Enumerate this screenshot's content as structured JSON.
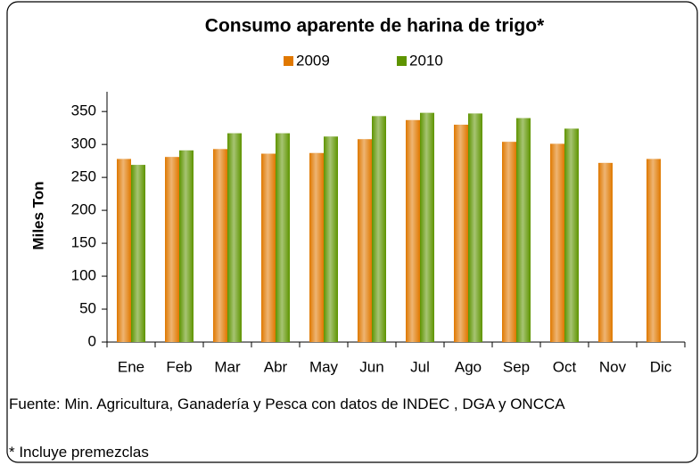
{
  "chart_data": {
    "type": "bar",
    "title": "Consumo aparente de harina de trigo*",
    "y_label": "Miles Ton",
    "categories": [
      "Ene",
      "Feb",
      "Mar",
      "Abr",
      "May",
      "Jun",
      "Jul",
      "Ago",
      "Sep",
      "Oct",
      "Nov",
      "Dic"
    ],
    "series": [
      {
        "name": "2009",
        "color": "#e07800",
        "values": [
          278,
          281,
          293,
          286,
          287,
          308,
          337,
          330,
          304,
          301,
          272,
          278
        ]
      },
      {
        "name": "2010",
        "color": "#5e9400",
        "values": [
          269,
          291,
          317,
          317,
          312,
          343,
          348,
          347,
          340,
          324,
          null,
          null
        ]
      }
    ],
    "ylim": [
      0,
      380
    ],
    "yticks": [
      0,
      50,
      100,
      150,
      200,
      250,
      300,
      350
    ],
    "legend": "top",
    "notes": [
      "Fuente: Min. Agricultura, Ganadería y Pesca con datos de INDEC , DGA y ONCCA",
      "* Incluye premezclas"
    ]
  }
}
